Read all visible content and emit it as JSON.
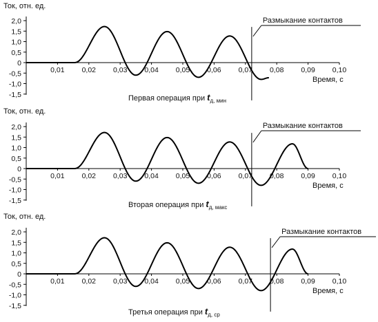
{
  "chart_data": [
    {
      "type": "line",
      "ylabel": "Ток, отн. ед.",
      "xlabel": "Время, с",
      "caption_text": "Первая операция при ",
      "caption_var": "t",
      "caption_sub": "д, мин",
      "annotation": "Размыкание контактов",
      "contact_opening_time": 0.072,
      "xlim": [
        0,
        0.1
      ],
      "ylim": [
        -1.5,
        2.0
      ],
      "x_ticks": [
        "0,01",
        "0,02",
        "0,03",
        "0,04",
        "0,05",
        "0,06",
        "0,07",
        "0,08",
        "0,09",
        "0,10"
      ],
      "y_ticks": [
        "2,0",
        "1,5",
        "1,0",
        "0,5",
        "0",
        "-0,5",
        "-1,0",
        "-1,5"
      ],
      "x": [
        0,
        0.0155,
        0.025,
        0.035,
        0.045,
        0.055,
        0.065,
        0.075,
        0.0775
      ],
      "y": [
        0,
        0,
        1.72,
        -0.6,
        1.48,
        -0.7,
        1.27,
        -0.8,
        -0.72
      ]
    },
    {
      "type": "line",
      "ylabel": "Ток, отн. ед.",
      "xlabel": "Время, с",
      "caption_text": "Вторая операция при ",
      "caption_var": "t",
      "caption_sub": "д, макс",
      "annotation": "Размыкание контактов",
      "contact_opening_time": 0.072,
      "xlim": [
        0,
        0.1
      ],
      "ylim": [
        -1.5,
        2.0
      ],
      "x_ticks": [
        "0,01",
        "0,02",
        "0,03",
        "0,04",
        "0,05",
        "0,06",
        "0,07",
        "0,08",
        "0,09",
        "0,10"
      ],
      "y_ticks": [
        "2,0",
        "1,5",
        "1,0",
        "0,5",
        "0",
        "-0,5",
        "-1,0",
        "-1,5"
      ],
      "x": [
        0,
        0.0155,
        0.025,
        0.035,
        0.045,
        0.055,
        0.065,
        0.075,
        0.085,
        0.09
      ],
      "y": [
        0,
        0,
        1.72,
        -0.6,
        1.48,
        -0.7,
        1.27,
        -0.8,
        1.18,
        0
      ]
    },
    {
      "type": "line",
      "ylabel": "Ток, отн. ед.",
      "xlabel": "Время, с",
      "caption_text": "Третья операция при ",
      "caption_var": "t",
      "caption_sub": "д, ср",
      "annotation": "Размыкание контактов",
      "contact_opening_time": 0.078,
      "xlim": [
        0,
        0.1
      ],
      "ylim": [
        -1.5,
        2.0
      ],
      "x_ticks": [
        "0,01",
        "0,02",
        "0,03",
        "0,04",
        "0,05",
        "0,06",
        "0,07",
        "0,08",
        "0,09",
        "0,10"
      ],
      "y_ticks": [
        "2,0",
        "1,5",
        "1,0",
        "0,5",
        "0",
        "-0,5",
        "-1,0",
        "-1,5"
      ],
      "x": [
        0,
        0.0155,
        0.025,
        0.035,
        0.045,
        0.055,
        0.065,
        0.075,
        0.085,
        0.09
      ],
      "y": [
        0,
        0,
        1.72,
        -0.6,
        1.48,
        -0.7,
        1.27,
        -0.8,
        1.18,
        0
      ]
    }
  ]
}
